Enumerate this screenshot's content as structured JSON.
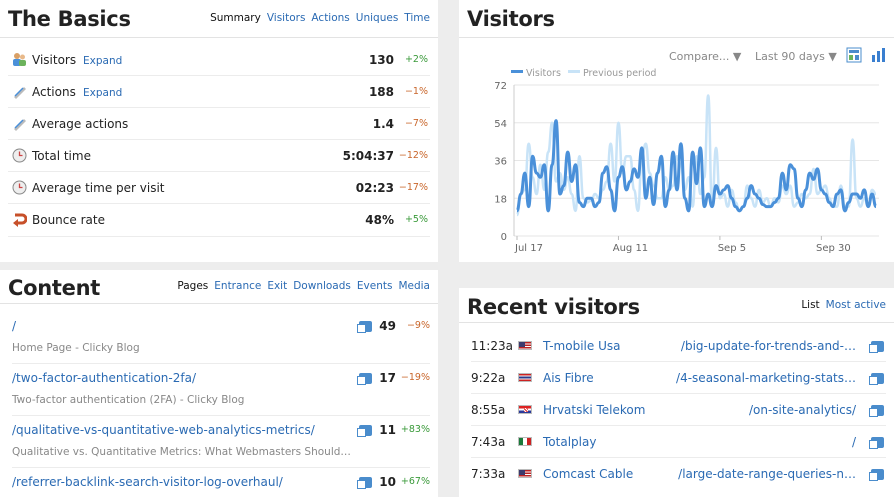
{
  "basics": {
    "title": "The Basics",
    "tabs": [
      "Summary",
      "Visitors",
      "Actions",
      "Uniques",
      "Time"
    ],
    "rows": [
      {
        "label": "Visitors",
        "expand": "Expand",
        "value": "130",
        "change": "+2%",
        "dir": "pos",
        "icon": "visitors-icon"
      },
      {
        "label": "Actions",
        "expand": "Expand",
        "value": "188",
        "change": "−1%",
        "dir": "neg",
        "icon": "actions-icon"
      },
      {
        "label": "Average actions",
        "value": "1.4",
        "change": "−7%",
        "dir": "neg",
        "icon": "average-actions-icon"
      },
      {
        "label": "Total time",
        "value": "5:04:37",
        "change": "−12%",
        "dir": "neg",
        "icon": "clock-icon"
      },
      {
        "label": "Average time per visit",
        "value": "02:23",
        "change": "−17%",
        "dir": "neg",
        "icon": "clock-icon"
      },
      {
        "label": "Bounce rate",
        "value": "48%",
        "change": "+5%",
        "dir": "pos",
        "icon": "bounce-icon"
      }
    ]
  },
  "visitors": {
    "title": "Visitors",
    "compare": "Compare...",
    "range": "Last 90 days",
    "legend_current": "Visitors",
    "legend_previous": "Previous period"
  },
  "chart_data": {
    "type": "line",
    "ylim": [
      0,
      72
    ],
    "yticks": [
      "72",
      "54",
      "36",
      "18",
      "0"
    ],
    "xticks": [
      "Jul 17",
      "Aug 11",
      "Sep 5",
      "Sep 30"
    ],
    "series": [
      {
        "name": "Visitors",
        "color": "#4a90d9",
        "values": [
          12,
          20,
          30,
          14,
          38,
          30,
          28,
          34,
          12,
          34,
          55,
          20,
          24,
          40,
          26,
          34,
          16,
          14,
          18,
          18,
          14,
          16,
          30,
          33,
          22,
          12,
          28,
          33,
          22,
          26,
          32,
          28,
          42,
          18,
          28,
          15,
          30,
          38,
          14,
          22,
          40,
          22,
          44,
          18,
          12,
          40,
          25,
          42,
          14,
          20,
          14,
          24,
          20,
          22,
          24,
          18,
          14,
          12,
          14,
          18,
          24,
          20,
          18,
          15,
          14,
          14,
          16,
          18,
          30,
          22,
          34,
          32,
          18,
          14,
          22,
          30,
          27,
          32,
          22,
          20,
          16,
          14,
          20,
          22,
          12,
          16,
          20,
          20,
          18,
          22,
          14,
          20,
          14
        ]
      },
      {
        "name": "Previous period",
        "color": "#c8e3f7",
        "values": [
          10,
          20,
          22,
          44,
          28,
          20,
          34,
          22,
          40,
          54,
          26,
          30,
          22,
          28,
          20,
          12,
          38,
          18,
          16,
          17,
          20,
          18,
          22,
          26,
          44,
          26,
          54,
          30,
          38,
          38,
          22,
          12,
          38,
          44,
          30,
          24,
          18,
          18,
          28,
          22,
          24,
          38,
          34,
          22,
          28,
          14,
          38,
          20,
          28,
          67,
          14,
          42,
          18,
          20,
          14,
          22,
          16,
          12,
          14,
          24,
          18,
          14,
          22,
          16,
          18,
          14,
          18,
          16,
          24,
          20,
          24,
          14,
          16,
          20,
          18,
          20,
          32,
          20,
          22,
          24,
          18,
          14,
          14,
          24,
          14,
          14,
          46,
          18,
          14,
          18,
          14,
          22,
          20
        ]
      }
    ]
  },
  "content": {
    "title": "Content",
    "tabs": [
      "Pages",
      "Entrance",
      "Exit",
      "Downloads",
      "Events",
      "Media"
    ],
    "rows": [
      {
        "path": "/",
        "sub": "Home Page - Clicky Blog",
        "value": "49",
        "change": "−9%",
        "dir": "neg"
      },
      {
        "path": "/two-factor-authentication-2fa/",
        "sub": "Two-factor authentication (2FA) - Clicky Blog",
        "value": "17",
        "change": "−19%",
        "dir": "neg"
      },
      {
        "path": "/qualitative-vs-quantitative-web-analytics-metrics/",
        "sub": "Qualitative vs. Quantitative Metrics: What Webmasters Should…",
        "value": "11",
        "change": "+83%",
        "dir": "pos"
      },
      {
        "path": "/referrer-backlink-search-visitor-log-overhaul/",
        "sub": "",
        "value": "10",
        "change": "+67%",
        "dir": "pos"
      }
    ]
  },
  "recent": {
    "title": "Recent visitors",
    "tabs": [
      "List",
      "Most active"
    ],
    "rows": [
      {
        "time": "11:23a",
        "isp": "T-mobile Usa",
        "path": "/big-update-for-trends-and-…",
        "flag": "us"
      },
      {
        "time": "9:22a",
        "isp": "Ais Fibre",
        "path": "/4-seasonal-marketing-stats…",
        "flag": "th"
      },
      {
        "time": "8:55a",
        "isp": "Hrvatski Telekom",
        "path": "/on-site-analytics/",
        "flag": "hr"
      },
      {
        "time": "7:43a",
        "isp": "Totalplay",
        "path": "/",
        "flag": "mx"
      },
      {
        "time": "7:33a",
        "isp": "Comcast Cable",
        "path": "/large-date-range-queries-n…",
        "flag": "us"
      }
    ]
  }
}
